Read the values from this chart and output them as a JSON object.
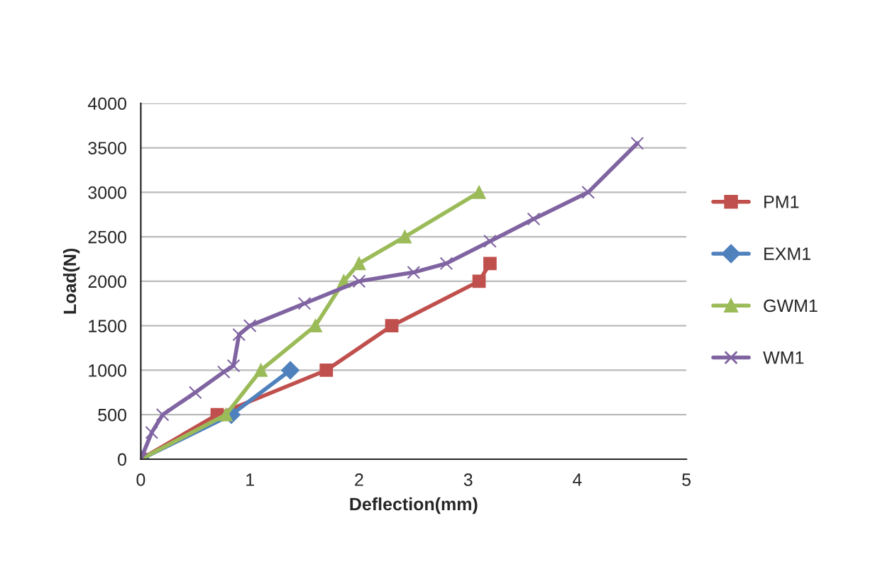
{
  "chart_data": {
    "type": "line",
    "xlabel": "Deflection(mm)",
    "ylabel": "Load(N)",
    "xlim": [
      0,
      5
    ],
    "xticks": [
      0,
      1,
      2,
      3,
      4,
      5
    ],
    "ylim": [
      0,
      4000
    ],
    "yticks": [
      0,
      500,
      1000,
      1500,
      2000,
      2500,
      3000,
      3500,
      4000
    ],
    "grid": "y",
    "legend": "right",
    "series": [
      {
        "name": "PM1",
        "color": "#c0504d",
        "marker": "square",
        "x": [
          0,
          0.7,
          1.7,
          2.3,
          3.1,
          3.2
        ],
        "values": [
          0,
          500,
          1000,
          1500,
          2000,
          2200
        ]
      },
      {
        "name": "EXM1",
        "color": "#4f81bd",
        "marker": "diamond",
        "x": [
          0,
          0.83,
          1.37
        ],
        "values": [
          0,
          500,
          1000
        ]
      },
      {
        "name": "GWM1",
        "color": "#9bbb59",
        "marker": "triangle",
        "x": [
          0,
          0.78,
          1.1,
          1.6,
          1.86,
          2.0,
          2.42,
          3.1
        ],
        "values": [
          0,
          500,
          1000,
          1500,
          2000,
          2200,
          2500,
          3000
        ]
      },
      {
        "name": "WM1",
        "color": "#8064a2",
        "marker": "cross",
        "x": [
          0,
          0.1,
          0.2,
          0.5,
          0.76,
          0.85,
          0.9,
          1.0,
          1.5,
          2.0,
          2.5,
          2.8,
          3.2,
          3.6,
          4.1,
          4.55
        ],
        "values": [
          0,
          300,
          500,
          750,
          980,
          1050,
          1400,
          1500,
          1750,
          2000,
          2100,
          2200,
          2450,
          2700,
          3000,
          3550
        ]
      }
    ]
  }
}
